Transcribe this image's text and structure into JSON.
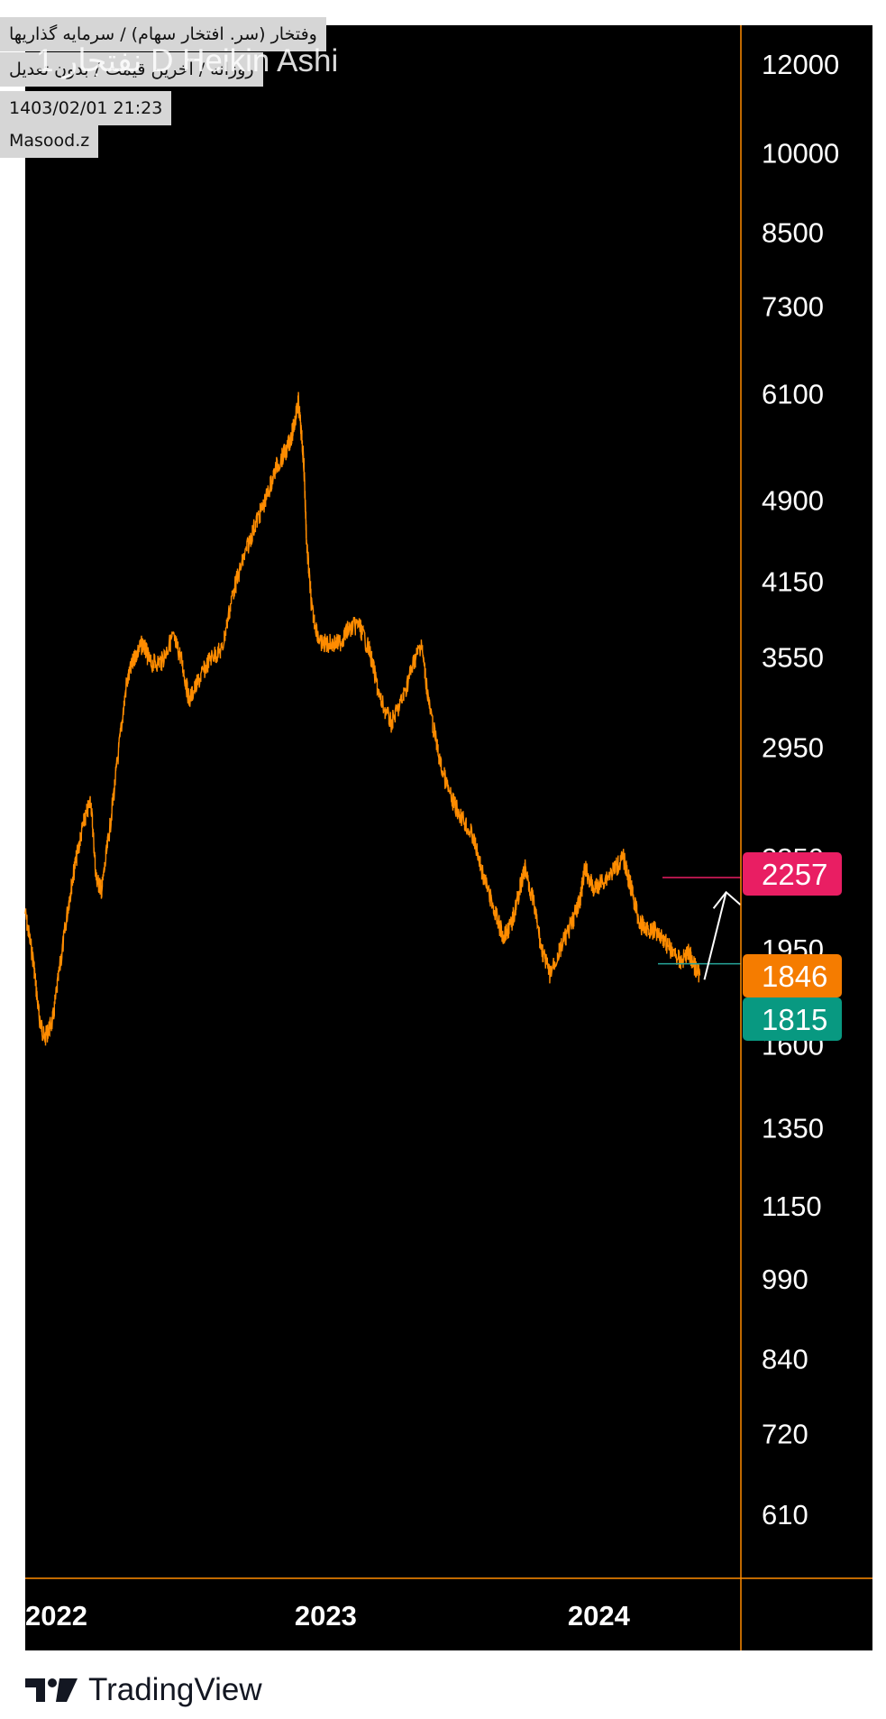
{
  "header": {
    "symbol_line": "وفتخار (سر. افتخار سهام) / سرمایه گذاریها",
    "settings_line": "روزانه / آخرین قیمت / بدون تعدیل",
    "datetime": "1403/02/01 21:23",
    "author": "Masood.z",
    "overlay_title": "1 نفتجار D Heikin Ashi"
  },
  "footer": {
    "brand": "TradingView"
  },
  "colors": {
    "background": "#000000",
    "price_line": "#ff8c00",
    "axis_line": "#ff8c00",
    "tag_high": "#e91e63",
    "tag_last": "#f57c00",
    "tag_support": "#089981",
    "support_line": "#26a69a",
    "arrow": "#ffffff"
  },
  "chart_data": {
    "type": "line",
    "scale": "log",
    "style": "Heikin Ashi",
    "interval": "daily",
    "y_ticks": [
      12000,
      10000,
      8500,
      7300,
      6100,
      4900,
      4150,
      3550,
      2950,
      2350,
      1950,
      1600,
      1350,
      1150,
      990,
      840,
      720,
      610
    ],
    "x_ticks": [
      {
        "label": "2022",
        "year": 2022.0
      },
      {
        "label": "2023",
        "year": 2023.0
      },
      {
        "label": "2024",
        "year": 2024.0
      }
    ],
    "ylim": [
      535,
      13000
    ],
    "xlim": [
      2021.9,
      2024.52
    ],
    "series": [
      {
        "values": [
          [
            2021.9,
            2100
          ],
          [
            2021.93,
            1900
          ],
          [
            2021.95,
            1700
          ],
          [
            2021.97,
            1620
          ],
          [
            2022.0,
            1680
          ],
          [
            2022.03,
            1900
          ],
          [
            2022.06,
            2150
          ],
          [
            2022.08,
            2300
          ],
          [
            2022.11,
            2500
          ],
          [
            2022.14,
            2650
          ],
          [
            2022.16,
            2250
          ],
          [
            2022.18,
            2200
          ],
          [
            2022.21,
            2500
          ],
          [
            2022.24,
            2900
          ],
          [
            2022.27,
            3350
          ],
          [
            2022.3,
            3550
          ],
          [
            2022.33,
            3650
          ],
          [
            2022.36,
            3500
          ],
          [
            2022.4,
            3520
          ],
          [
            2022.44,
            3700
          ],
          [
            2022.47,
            3550
          ],
          [
            2022.5,
            3250
          ],
          [
            2022.54,
            3400
          ],
          [
            2022.58,
            3550
          ],
          [
            2022.62,
            3600
          ],
          [
            2022.66,
            4050
          ],
          [
            2022.7,
            4350
          ],
          [
            2022.74,
            4650
          ],
          [
            2022.78,
            4900
          ],
          [
            2022.82,
            5250
          ],
          [
            2022.86,
            5450
          ],
          [
            2022.88,
            5650
          ],
          [
            2022.9,
            6000
          ],
          [
            2022.92,
            5300
          ],
          [
            2022.93,
            4500
          ],
          [
            2022.95,
            3900
          ],
          [
            2022.98,
            3650
          ],
          [
            2023.01,
            3650
          ],
          [
            2023.05,
            3650
          ],
          [
            2023.08,
            3750
          ],
          [
            2023.12,
            3800
          ],
          [
            2023.16,
            3600
          ],
          [
            2023.2,
            3250
          ],
          [
            2023.24,
            3100
          ],
          [
            2023.28,
            3250
          ],
          [
            2023.32,
            3500
          ],
          [
            2023.35,
            3650
          ],
          [
            2023.38,
            3200
          ],
          [
            2023.42,
            2850
          ],
          [
            2023.46,
            2650
          ],
          [
            2023.5,
            2550
          ],
          [
            2023.54,
            2450
          ],
          [
            2023.58,
            2250
          ],
          [
            2023.62,
            2100
          ],
          [
            2023.65,
            2000
          ],
          [
            2023.68,
            2050
          ],
          [
            2023.71,
            2200
          ],
          [
            2023.73,
            2300
          ],
          [
            2023.76,
            2150
          ],
          [
            2023.79,
            1950
          ],
          [
            2023.82,
            1850
          ],
          [
            2023.86,
            1950
          ],
          [
            2023.9,
            2050
          ],
          [
            2023.93,
            2150
          ],
          [
            2023.95,
            2300
          ],
          [
            2023.98,
            2200
          ],
          [
            2024.02,
            2250
          ],
          [
            2024.06,
            2300
          ],
          [
            2024.09,
            2350
          ],
          [
            2024.12,
            2200
          ],
          [
            2024.15,
            2050
          ],
          [
            2024.18,
            2030
          ],
          [
            2024.22,
            2020
          ],
          [
            2024.26,
            1950
          ],
          [
            2024.3,
            1900
          ],
          [
            2024.33,
            1940
          ],
          [
            2024.35,
            1880
          ],
          [
            2024.37,
            1846
          ]
        ]
      }
    ],
    "price_tags": [
      {
        "label": "2257",
        "value": 2257,
        "color": "#e91e63"
      },
      {
        "label": "1846",
        "value": 1846,
        "color": "#f57c00"
      },
      {
        "label": "1815",
        "value": 1815,
        "color": "#089981"
      }
    ],
    "support_level": 1815,
    "arrow": {
      "from": [
        2024.36,
        1830
      ],
      "to": [
        2024.4,
        2190
      ]
    }
  }
}
